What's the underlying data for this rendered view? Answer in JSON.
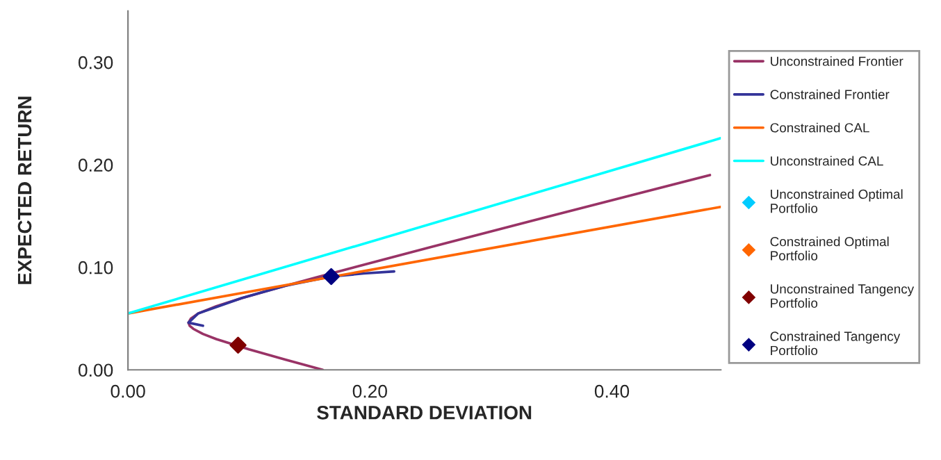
{
  "chart_data": {
    "type": "line",
    "xlabel": "STANDARD DEVIATION",
    "ylabel": "EXPECTED RETURN",
    "xlim": [
      0,
      0.49
    ],
    "ylim": [
      0,
      0.35
    ],
    "xticks": [
      {
        "value": 0,
        "label": "0.00"
      },
      {
        "value": 0.2,
        "label": "0.20"
      },
      {
        "value": 0.4,
        "label": "0.40"
      }
    ],
    "yticks": [
      {
        "value": 0,
        "label": "0.00"
      },
      {
        "value": 0.1,
        "label": "0.10"
      },
      {
        "value": 0.2,
        "label": "0.20"
      },
      {
        "value": 0.3,
        "label": "0.30"
      }
    ],
    "grid": false,
    "legend": "right",
    "line_style": "solid",
    "series": [
      {
        "name": "Unconstrained Frontier",
        "color": "#993366",
        "x": [
          0.161,
          0.13,
          0.1,
          0.073,
          0.062,
          0.054,
          0.051,
          0.05,
          0.052,
          0.058,
          0.073,
          0.094,
          0.124,
          0.155,
          0.251,
          0.349,
          0.481
        ],
        "values": [
          0,
          0.01,
          0.02,
          0.03,
          0.035,
          0.04,
          0.043,
          0.046,
          0.05,
          0.055,
          0.062,
          0.07,
          0.08,
          0.09,
          0.12,
          0.15,
          0.19
        ]
      },
      {
        "name": "Constrained Frontier",
        "color": "#333399",
        "x": [
          0.062,
          0.05,
          0.058,
          0.094,
          0.13,
          0.168,
          0.195,
          0.22
        ],
        "values": [
          0.043,
          0.046,
          0.055,
          0.07,
          0.082,
          0.091,
          0.094,
          0.096
        ]
      },
      {
        "name": "Constrained CAL",
        "color": "#ff6600",
        "x": [
          0,
          0.49
        ],
        "values": [
          0.055,
          0.159
        ]
      },
      {
        "name": "Unconstrained CAL",
        "color": "#00ffff",
        "x": [
          0,
          0.49
        ],
        "values": [
          0.055,
          0.226
        ]
      },
      {
        "name": "Unconstrained Optimal\nPortfolio",
        "type": "scatter",
        "marker": "diamond",
        "color": "#00ccff",
        "x": [
          null
        ],
        "values": [
          null
        ]
      },
      {
        "name": "Constrained Optimal\nPortfolio",
        "type": "scatter",
        "marker": "diamond",
        "color": "#ff6600",
        "x": [
          null
        ],
        "values": [
          null
        ]
      },
      {
        "name": "Unconstrained Tangency\nPortfolio",
        "type": "scatter",
        "marker": "diamond",
        "color": "#800000",
        "x": [
          0.091
        ],
        "values": [
          0.024
        ]
      },
      {
        "name": "Constrained Tangency\nPortfolio",
        "type": "scatter",
        "marker": "diamond",
        "color": "#000080",
        "x": [
          0.168
        ],
        "values": [
          0.091
        ]
      }
    ]
  }
}
